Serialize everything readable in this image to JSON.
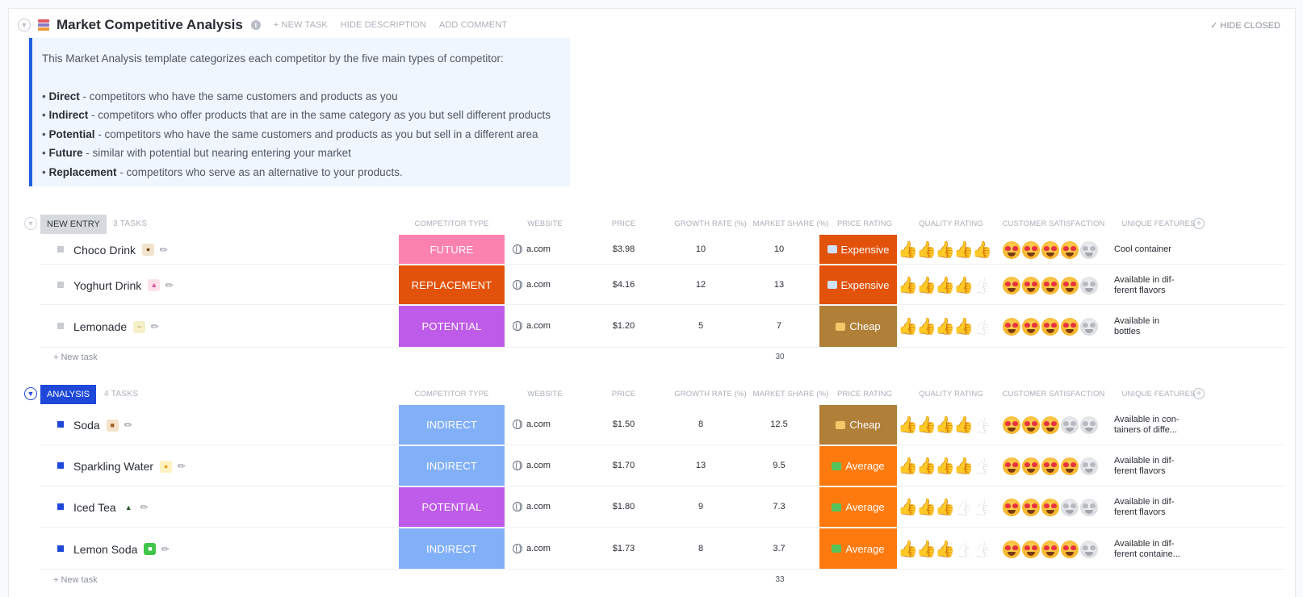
{
  "header": {
    "title": "Market Competitive Analysis",
    "links": [
      "+ NEW TASK",
      "HIDE DESCRIPTION",
      "ADD COMMENT"
    ],
    "hide_closed": "HIDE CLOSED"
  },
  "description": {
    "intro": "This Market Analysis template categorizes each competitor by the five main types of competitor:",
    "items": [
      {
        "term": "Direct",
        "text": " - competitors who have the same customers and products as you"
      },
      {
        "term": "Indirect",
        "text": " - competitors who offer products that are in the same category as you but sell different products"
      },
      {
        "term": "Potential",
        "text": " - competitors who have the same customers and products as you but sell in a different area"
      },
      {
        "term": "Future",
        "text": " - similar with potential but nearing entering your market"
      },
      {
        "term": "Replacement",
        "text": " - competitors who serve as an alternative to your products."
      }
    ]
  },
  "columns": [
    "COMPETITOR TYPE",
    "WEBSITE",
    "PRICE",
    "GROWTH RATE (%)",
    "MARKET SHARE (%)",
    "PRICE RATING",
    "QUALITY RATING",
    "CUSTOMER SATISFACTION",
    "UNIQUE FEATURES"
  ],
  "colors": {
    "FUTURE": "#fb82ae",
    "REPLACEMENT": "#e2520a",
    "POTENTIAL": "#be5be8",
    "INDIRECT": "#82b0f8",
    "Expensive": "#e2520a",
    "Cheap": "#b07f38",
    "Average": "#ff7a0e"
  },
  "groups": [
    {
      "label": "NEW ENTRY",
      "count": "3 TASKS",
      "total_share": "30",
      "new_task": "+ New task",
      "rows": [
        {
          "name": "Choco Drink",
          "type": "FUTURE",
          "website": "a.com",
          "price": "$3.98",
          "growth": "10",
          "share": "10",
          "price_rating": "Expensive",
          "quality": 5,
          "satisfaction": 4,
          "unique": [
            "Cool container"
          ]
        },
        {
          "name": "Yoghurt Drink",
          "type": "REPLACEMENT",
          "website": "a.com",
          "price": "$4.16",
          "growth": "12",
          "share": "13",
          "price_rating": "Expensive",
          "quality": 4,
          "satisfaction": 4,
          "unique": [
            "Available in dif-",
            "ferent flavors"
          ]
        },
        {
          "name": "Lemonade",
          "type": "POTENTIAL",
          "website": "a.com",
          "price": "$1.20",
          "growth": "5",
          "share": "7",
          "price_rating": "Cheap",
          "quality": 4,
          "satisfaction": 4,
          "unique": [
            "Available in",
            "bottles"
          ]
        }
      ]
    },
    {
      "label": "ANALYSIS",
      "count": "4 TASKS",
      "total_share": "33",
      "new_task": "+ New task",
      "rows": [
        {
          "name": "Soda",
          "type": "INDIRECT",
          "website": "a.com",
          "price": "$1.50",
          "growth": "8",
          "share": "12.5",
          "price_rating": "Cheap",
          "quality": 4,
          "satisfaction": 3,
          "unique": [
            "Available in con-",
            "tainers of diffe..."
          ]
        },
        {
          "name": "Sparkling Water",
          "type": "INDIRECT",
          "website": "a.com",
          "price": "$1.70",
          "growth": "13",
          "share": "9.5",
          "price_rating": "Average",
          "quality": 4,
          "satisfaction": 4,
          "unique": [
            "Available in dif-",
            "ferent flavors"
          ]
        },
        {
          "name": "Iced Tea",
          "type": "POTENTIAL",
          "website": "a.com",
          "price": "$1.80",
          "growth": "9",
          "share": "7.3",
          "price_rating": "Average",
          "quality": 3,
          "satisfaction": 3,
          "unique": [
            "Available in dif-",
            "ferent flavors"
          ]
        },
        {
          "name": "Lemon Soda",
          "type": "INDIRECT",
          "website": "a.com",
          "price": "$1.73",
          "growth": "8",
          "share": "3.7",
          "price_rating": "Average",
          "quality": 3,
          "satisfaction": 4,
          "unique": [
            "Available in dif-",
            "ferent containe..."
          ]
        }
      ]
    }
  ]
}
